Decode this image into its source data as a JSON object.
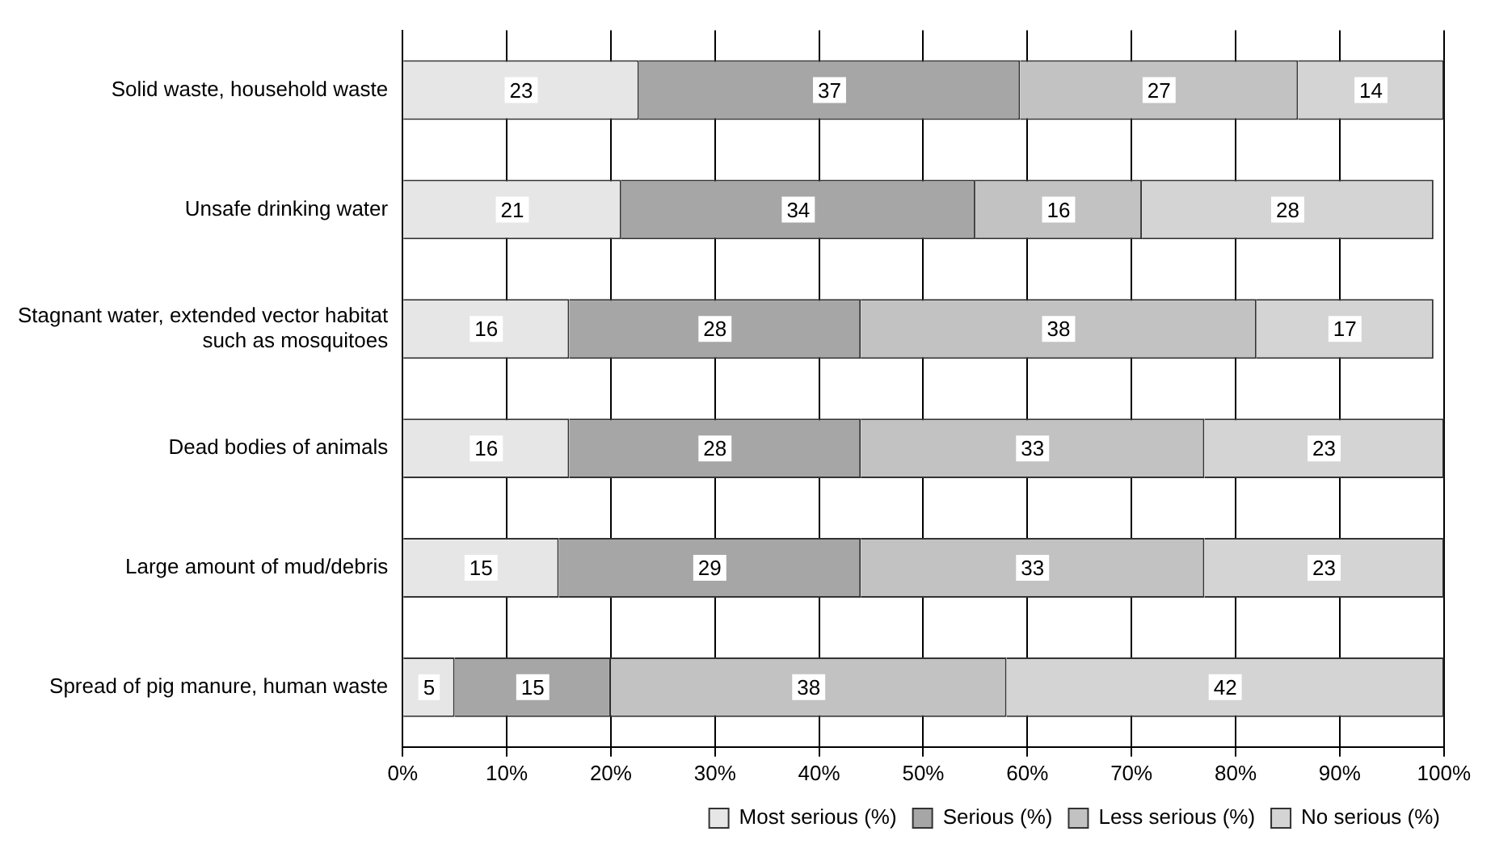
{
  "chart_data": {
    "type": "bar",
    "orientation": "horizontal",
    "stacked": true,
    "categories": [
      "Solid waste, household waste",
      "Unsafe drinking water",
      "Stagnant water, extended vector habitat such as mosquitoes",
      "Dead bodies of animals",
      "Large amount of mud/debris",
      "Spread of pig manure, human waste"
    ],
    "series": [
      {
        "name": "Most serious (%)",
        "color": "#e6e6e6",
        "values": [
          22.7,
          21,
          16,
          16,
          15,
          5
        ],
        "value_labels": [
          "23",
          "21",
          "16",
          "16",
          "15",
          "5"
        ]
      },
      {
        "name": "Serious (%)",
        "color": "#a6a6a6",
        "values": [
          36.6,
          34,
          28,
          28,
          29,
          15
        ],
        "value_labels": [
          "37",
          "34",
          "28",
          "28",
          "29",
          "15"
        ]
      },
      {
        "name": "Less serious (%)",
        "color": "#c2c2c2",
        "values": [
          26.7,
          16,
          38,
          33,
          33,
          38
        ],
        "value_labels": [
          "27",
          "16",
          "38",
          "33",
          "33",
          "38"
        ]
      },
      {
        "name": "No serious (%)",
        "color": "#d4d4d4",
        "values": [
          14,
          28,
          17,
          23,
          23,
          42
        ],
        "value_labels": [
          "14",
          "28",
          "17",
          "23",
          "23",
          "42"
        ]
      }
    ],
    "xlim": [
      0,
      100
    ],
    "xticks": [
      {
        "value": 0,
        "label": "0%"
      },
      {
        "value": 10,
        "label": "10%"
      },
      {
        "value": 20,
        "label": "20%"
      },
      {
        "value": 30,
        "label": "30%"
      },
      {
        "value": 40,
        "label": "40%"
      },
      {
        "value": 50,
        "label": "50%"
      },
      {
        "value": 60,
        "label": "60%"
      },
      {
        "value": 70,
        "label": "70%"
      },
      {
        "value": 80,
        "label": "80%"
      },
      {
        "value": 90,
        "label": "90%"
      },
      {
        "value": 100,
        "label": "100%"
      }
    ],
    "grid": "x",
    "legend": "bottom"
  }
}
